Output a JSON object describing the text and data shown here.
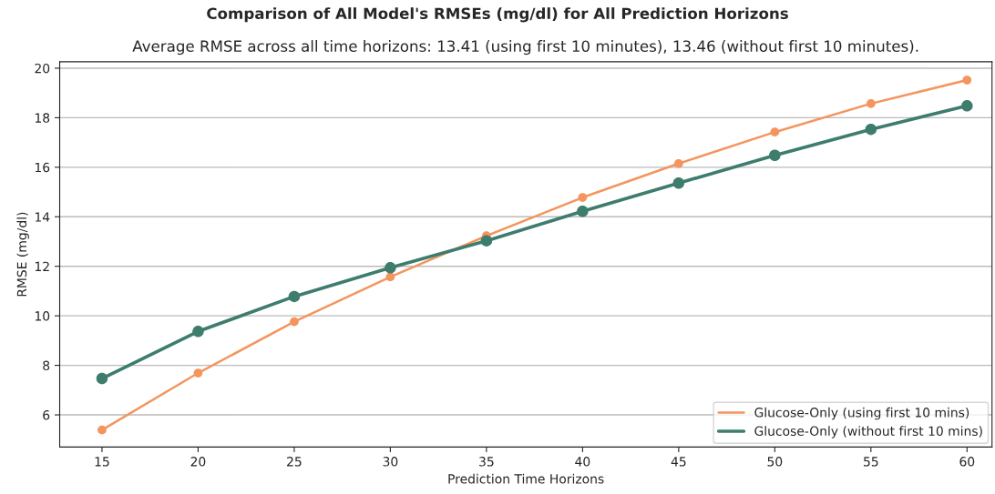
{
  "chart_data": {
    "type": "line",
    "title": "Comparison of All Model's RMSEs (mg/dl) for All Prediction Horizons",
    "subtitle": "Average RMSE across all time horizons: 13.41 (using first 10 minutes), 13.46 (without first 10 minutes).",
    "xlabel": "Prediction Time Horizons",
    "ylabel": "RMSE (mg/dl)",
    "x": [
      15,
      20,
      25,
      30,
      35,
      40,
      45,
      50,
      55,
      60
    ],
    "series": [
      {
        "name": "Glucose-Only (using first 10 mins)",
        "color": "#f4955e",
        "values": [
          5.39,
          7.69,
          9.76,
          11.57,
          13.23,
          14.78,
          16.15,
          17.42,
          18.57,
          19.52
        ]
      },
      {
        "name": "Glucose-Only (without first 10 mins)",
        "color": "#3e7d6e",
        "values": [
          7.47,
          9.37,
          10.78,
          11.94,
          13.03,
          14.22,
          15.36,
          16.48,
          17.53,
          18.48
        ]
      }
    ],
    "xlim": [
      12.8,
      61.3
    ],
    "ylim": [
      4.7,
      20.26
    ],
    "xticks": [
      15,
      20,
      25,
      30,
      35,
      40,
      45,
      50,
      55,
      60
    ],
    "yticks": [
      6,
      8,
      10,
      12,
      14,
      16,
      18,
      20
    ],
    "grid": "y",
    "legend": "bottom right",
    "marker": "circle"
  }
}
